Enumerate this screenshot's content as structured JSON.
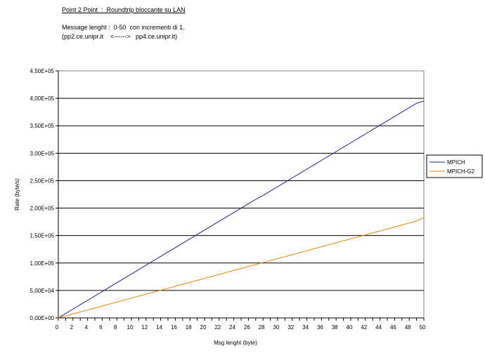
{
  "header": {
    "title": "Point 2 Point  :  Roundtrip bloccante su LAN",
    "line1": "Message lenght :  0-50  con incrementi di 1.",
    "line2": "(pp2.ce.unipr.it    <------>   pp4.ce.unipr.it)"
  },
  "chart_data": {
    "type": "line",
    "title": "Point 2 Point  :  Roundtrip bloccante su LAN",
    "xlabel": "Msg lenght (byte)",
    "ylabel": "Rate (byte/s)",
    "xlim": [
      0,
      50
    ],
    "ylim": [
      0,
      450000
    ],
    "grid": true,
    "legend_position": "right",
    "x_ticks": [
      "0",
      "2",
      "4",
      "6",
      "8",
      "10",
      "12",
      "14",
      "16",
      "18",
      "20",
      "22",
      "24",
      "26",
      "28",
      "30",
      "32",
      "34",
      "36",
      "38",
      "40",
      "42",
      "44",
      "46",
      "48",
      "50"
    ],
    "y_ticks": [
      "0,00E+00",
      "5,00E+04",
      "1,00E+05",
      "1,50E+05",
      "2,00E+05",
      "2,50E+05",
      "3,00E+05",
      "3,50E+05",
      "4,00E+05",
      "4,50E+05"
    ],
    "x": [
      0,
      1,
      2,
      3,
      4,
      5,
      6,
      7,
      8,
      9,
      10,
      11,
      12,
      13,
      14,
      15,
      16,
      17,
      18,
      19,
      20,
      21,
      22,
      23,
      24,
      25,
      26,
      27,
      28,
      29,
      30,
      31,
      32,
      33,
      34,
      35,
      36,
      37,
      38,
      39,
      40,
      41,
      42,
      43,
      44,
      45,
      46,
      47,
      48,
      49,
      50
    ],
    "series": [
      {
        "name": "MPICH",
        "color": "#1f1f8f",
        "values": [
          0,
          8000,
          16000,
          24000,
          32000,
          40000,
          48000,
          56000,
          64000,
          72000,
          80000,
          88000,
          96000,
          104000,
          112000,
          120000,
          128000,
          136000,
          144000,
          152000,
          160000,
          168000,
          176000,
          184000,
          192000,
          200000,
          208000,
          216000,
          223000,
          231000,
          239000,
          247000,
          255000,
          263000,
          271000,
          279000,
          287000,
          295000,
          303000,
          311000,
          319000,
          327000,
          335000,
          343000,
          351000,
          359000,
          367000,
          375000,
          383000,
          391000,
          395000
        ]
      },
      {
        "name": "MPICH-G2",
        "color": "#e8820a",
        "values": [
          0,
          3600,
          7200,
          10800,
          14400,
          18000,
          21600,
          25200,
          28800,
          32400,
          36000,
          39600,
          43200,
          46800,
          50400,
          54000,
          57600,
          61200,
          64800,
          68400,
          72000,
          75600,
          79200,
          82800,
          86400,
          90000,
          93600,
          97200,
          100800,
          104400,
          108000,
          111600,
          115200,
          118800,
          122400,
          126000,
          129600,
          133200,
          136800,
          140400,
          144000,
          147600,
          151200,
          154800,
          158400,
          162000,
          165600,
          169200,
          172800,
          176400,
          183000
        ]
      }
    ]
  }
}
